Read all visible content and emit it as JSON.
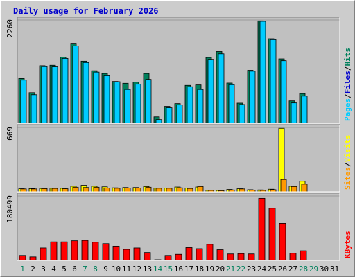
{
  "title": "Daily usage for February 2026",
  "colors": {
    "hits": "#00805c",
    "files": "#00ccff",
    "pages": "#00ccff",
    "visits": "#ffff00",
    "sites": "#ff9900",
    "kbytes": "#ff0000",
    "weekday": "#000000",
    "weekend": "#00805c",
    "label_pages": "#00ccff",
    "label_files": "#0000cc",
    "label_hits": "#00805c",
    "label_sites": "#ff9900",
    "label_visits": "#ffff00",
    "label_kbytes": "#ff0000",
    "slash": "#000000"
  },
  "chart_data": {
    "type": "bar",
    "days": [
      "1",
      "2",
      "3",
      "4",
      "5",
      "6",
      "7",
      "8",
      "9",
      "10",
      "11",
      "12",
      "13",
      "14",
      "15",
      "16",
      "17",
      "18",
      "19",
      "20",
      "21",
      "22",
      "23",
      "24",
      "25",
      "26",
      "27",
      "28",
      "29",
      "30",
      "31"
    ],
    "weekend_days": [
      "1",
      "7",
      "8",
      "14",
      "15",
      "21",
      "22",
      "28",
      "29"
    ],
    "panels": [
      {
        "ymax_label": "2260",
        "ymax": 2260,
        "right_labels": [
          "Pages",
          "Files",
          "Hits"
        ],
        "series": [
          {
            "name": "Hits",
            "values": [
              980,
              670,
              1260,
              1270,
              1450,
              1750,
              1360,
              1150,
              1090,
              915,
              875,
              900,
              1090,
              140,
              370,
              430,
              830,
              840,
              1440,
              1570,
              880,
              440,
              1160,
              2240,
              1850,
              1410,
              490,
              650,
              0,
              0,
              0
            ]
          },
          {
            "name": "Files",
            "values": [
              945,
              625,
              1240,
              1235,
              1420,
              1690,
              1330,
              1120,
              1040,
              910,
              740,
              855,
              960,
              80,
              340,
              400,
              800,
              740,
              1400,
              1520,
              845,
              410,
              1140,
              2230,
              1830,
              1370,
              445,
              595,
              0,
              0,
              0
            ]
          }
        ]
      },
      {
        "ymax_label": "669",
        "ymax": 669,
        "right_labels": [
          "Sites",
          "Visits"
        ],
        "series": [
          {
            "name": "Visits",
            "values": [
              32,
              33,
              35,
              38,
              37,
              58,
              68,
              58,
              52,
              42,
              45,
              45,
              55,
              40,
              40,
              50,
              40,
              50,
              18,
              15,
              25,
              32,
              22,
              20,
              27,
              660,
              58,
              110,
              0,
              0,
              0
            ]
          },
          {
            "name": "Sites",
            "values": [
              30,
              30,
              33,
              35,
              32,
              48,
              45,
              48,
              40,
              37,
              40,
              40,
              48,
              37,
              37,
              42,
              35,
              55,
              15,
              12,
              20,
              30,
              18,
              15,
              22,
              128,
              55,
              80,
              0,
              0,
              0
            ]
          }
        ]
      },
      {
        "ymax_label": "180499",
        "ymax": 180499,
        "right_labels": [
          "KBytes"
        ],
        "series": [
          {
            "name": "KBytes",
            "values": [
              14000,
              10000,
              35000,
              52000,
              52000,
              55000,
              56000,
              51000,
              47000,
              40000,
              31000,
              35000,
              22000,
              1500,
              14000,
              17000,
              36000,
              33000,
              45000,
              30000,
              18000,
              19000,
              18000,
              174000,
              146000,
              104000,
              20000,
              27000,
              0,
              0,
              0
            ]
          }
        ]
      }
    ]
  }
}
